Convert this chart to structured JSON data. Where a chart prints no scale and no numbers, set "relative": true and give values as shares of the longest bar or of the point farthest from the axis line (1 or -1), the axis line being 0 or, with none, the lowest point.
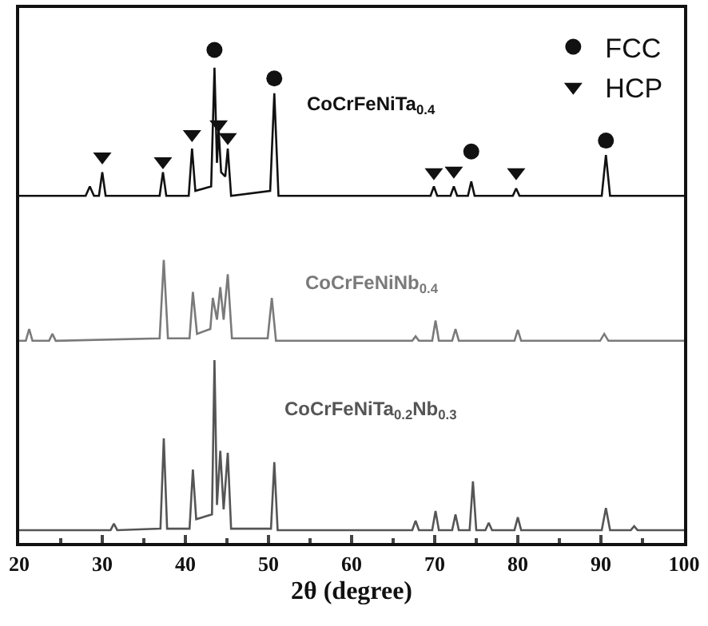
{
  "chart_data": {
    "type": "line",
    "relative": true,
    "xlabel": "2θ (degree)",
    "xlim": [
      20,
      100
    ],
    "xticks": [
      20,
      30,
      40,
      50,
      60,
      70,
      80,
      90,
      100
    ],
    "grid": false,
    "legend": "top right",
    "tick_labels": "x",
    "line_style": "solid",
    "marker": "none",
    "series": [
      {
        "color": "#111111",
        "x": [
          20,
          28,
          28.5,
          29,
          29.6,
          30,
          30.4,
          36.9,
          37.3,
          37.7,
          40.4,
          40.8,
          41.2,
          43.1,
          43.5,
          43.8,
          44,
          44.3,
          44.8,
          45.1,
          45.5,
          50.2,
          50.7,
          51.2,
          69.5,
          69.9,
          70.3,
          71.9,
          72.3,
          72.7,
          74,
          74.4,
          74.8,
          79.4,
          79.8,
          80.2,
          90.1,
          90.6,
          91.1,
          100
        ],
        "values": [
          0.704,
          0.704,
          0.723,
          0.704,
          0.704,
          0.752,
          0.704,
          0.704,
          0.752,
          0.704,
          0.704,
          0.8,
          0.714,
          0.723,
          0.964,
          0.771,
          0.839,
          0.752,
          0.743,
          0.8,
          0.704,
          0.714,
          0.912,
          0.704,
          0.704,
          0.723,
          0.704,
          0.704,
          0.723,
          0.704,
          0.704,
          0.733,
          0.704,
          0.704,
          0.719,
          0.704,
          0.704,
          0.787,
          0.704,
          0.704
        ]
      },
      {
        "color": "#7a7a7a",
        "x": [
          20,
          20.8,
          21.2,
          21.6,
          23.6,
          24,
          24.4,
          36.9,
          37.4,
          37.9,
          40.5,
          40.9,
          41.4,
          43,
          43.3,
          43.8,
          44.2,
          44.6,
          45.1,
          45.6,
          49.9,
          50.4,
          50.9,
          67.3,
          67.7,
          68.1,
          69.7,
          70.1,
          70.5,
          72.1,
          72.5,
          72.9,
          79.6,
          80,
          80.4,
          89.9,
          90.4,
          90.9,
          100
        ],
        "values": [
          0.41,
          0.41,
          0.434,
          0.41,
          0.41,
          0.424,
          0.41,
          0.415,
          0.574,
          0.415,
          0.415,
          0.509,
          0.424,
          0.434,
          0.497,
          0.453,
          0.519,
          0.453,
          0.545,
          0.415,
          0.415,
          0.497,
          0.41,
          0.41,
          0.419,
          0.41,
          0.41,
          0.451,
          0.41,
          0.41,
          0.434,
          0.41,
          0.41,
          0.432,
          0.41,
          0.41,
          0.424,
          0.41,
          0.41
        ]
      },
      {
        "color": "#555555",
        "x": [
          20,
          31,
          31.4,
          31.8,
          37,
          37.4,
          37.8,
          40.5,
          40.9,
          41.3,
          43.2,
          43.5,
          43.8,
          44.2,
          44.6,
          45.1,
          45.5,
          50.3,
          50.7,
          51.1,
          67.3,
          67.7,
          68.1,
          69.7,
          70.1,
          70.5,
          72.1,
          72.5,
          72.9,
          74.2,
          74.6,
          75,
          76.1,
          76.5,
          76.9,
          79.6,
          80,
          80.4,
          90.1,
          90.6,
          91.1,
          93.6,
          94,
          94.4,
          100
        ],
        "values": [
          0.026,
          0.026,
          0.039,
          0.026,
          0.029,
          0.212,
          0.029,
          0.029,
          0.149,
          0.048,
          0.058,
          0.371,
          0.077,
          0.187,
          0.068,
          0.183,
          0.029,
          0.029,
          0.164,
          0.026,
          0.026,
          0.045,
          0.026,
          0.026,
          0.065,
          0.026,
          0.026,
          0.058,
          0.026,
          0.026,
          0.125,
          0.026,
          0.026,
          0.041,
          0.026,
          0.026,
          0.052,
          0.026,
          0.026,
          0.071,
          0.026,
          0.026,
          0.034,
          0.026,
          0.026
        ]
      },
      {
        "name": "FCC",
        "type": "scatter",
        "marker": "circle",
        "color": "#111111",
        "x": [
          43.5,
          50.7,
          74.4,
          90.6
        ],
        "values": [
          1.0,
          0.942,
          0.794,
          0.816
        ]
      },
      {
        "name": "HCP",
        "type": "scatter",
        "marker": "triangle",
        "color": "#111111",
        "x": [
          30,
          37.3,
          40.8,
          44,
          45.1,
          69.9,
          72.3,
          79.8
        ],
        "values": [
          0.784,
          0.774,
          0.829,
          0.849,
          0.823,
          0.752,
          0.755,
          0.752
        ]
      }
    ],
    "annotations": [
      "CoCrFeNiTa$_{0.4}$",
      "CoCrFeNiNb$_{0.4}$",
      "CoCrFeNiTa$_{0.2}$Nb$_{0.3}$"
    ]
  }
}
